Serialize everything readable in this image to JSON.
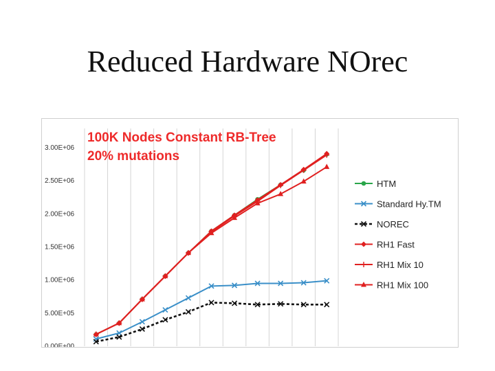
{
  "slide": {
    "title": "Reduced Hardware NOrec"
  },
  "chart_data": {
    "type": "line",
    "title_lines": [
      "100K Nodes Constant RB-Tree",
      "20% mutations"
    ],
    "title_color": "#ee2a2a",
    "xlabel": "",
    "ylabel": "",
    "ylim": [
      0,
      3000000
    ],
    "yticks": [
      0,
      500000,
      1000000,
      1500000,
      2000000,
      2500000,
      3000000
    ],
    "ytick_labels": [
      "0.00E+00",
      "5.00E+05",
      "1.00E+06",
      "1.50E+06",
      "2.00E+06",
      "2.50E+06",
      "3.00E+06"
    ],
    "x": [
      1,
      2,
      3,
      4,
      5,
      6,
      7,
      8,
      9,
      10,
      11
    ],
    "grid": "vertical",
    "legend_position": "right",
    "series": [
      {
        "name": "HTM",
        "color": "#2aa64a",
        "marker": "circle",
        "dash": "solid",
        "values": [
          180000,
          350000,
          710000,
          1060000,
          1410000,
          1740000,
          1980000,
          2220000,
          2440000,
          2660000,
          2900000
        ]
      },
      {
        "name": "Standard Hy.TM",
        "color": "#3a8fc8",
        "marker": "x",
        "dash": "solid",
        "values": [
          110000,
          200000,
          370000,
          550000,
          730000,
          910000,
          920000,
          950000,
          950000,
          960000,
          990000
        ]
      },
      {
        "name": "NOREC",
        "color": "#111111",
        "marker": "x",
        "dash": "dashed",
        "values": [
          70000,
          140000,
          260000,
          400000,
          520000,
          660000,
          650000,
          630000,
          640000,
          630000,
          630000
        ]
      },
      {
        "name": "RH1 Fast",
        "color": "#e02020",
        "marker": "diamond",
        "dash": "solid",
        "values": [
          180000,
          350000,
          710000,
          1060000,
          1410000,
          1740000,
          1980000,
          2210000,
          2440000,
          2670000,
          2910000
        ]
      },
      {
        "name": "RH1 Mix 10",
        "color": "#e02020",
        "marker": "plus",
        "dash": "solid",
        "values": [
          180000,
          350000,
          710000,
          1060000,
          1410000,
          1730000,
          1970000,
          2190000,
          2430000,
          2660000,
          2890000
        ]
      },
      {
        "name": "RH1 Mix 100",
        "color": "#e02020",
        "marker": "triangle",
        "dash": "solid",
        "values": [
          180000,
          350000,
          710000,
          1060000,
          1410000,
          1710000,
          1940000,
          2160000,
          2300000,
          2490000,
          2710000
        ]
      }
    ]
  }
}
